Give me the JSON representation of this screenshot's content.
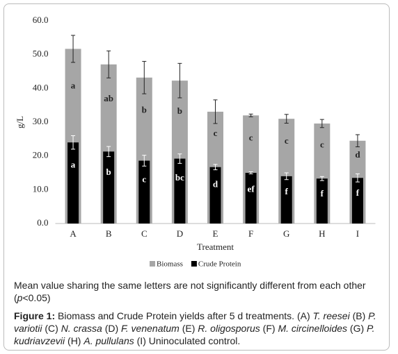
{
  "chart_data": {
    "type": "bar",
    "x_label": "Treatment",
    "y_label": "g/L",
    "categories": [
      "A",
      "B",
      "C",
      "D",
      "E",
      "F",
      "G",
      "H",
      "I"
    ],
    "series": [
      {
        "name": "Biomass",
        "color": "#a6a6a6",
        "values": [
          51.7,
          47.1,
          43.2,
          42.3,
          33.1,
          32.0,
          31.0,
          29.6,
          24.5
        ],
        "errors": [
          4.0,
          4.0,
          4.8,
          5.1,
          3.5,
          0.4,
          1.3,
          1.2,
          1.8
        ],
        "letters": [
          "a",
          "ab",
          "b",
          "b",
          "c",
          "c",
          "c",
          "c",
          "d"
        ]
      },
      {
        "name": "Crude Protein",
        "color": "#000000",
        "values": [
          24.0,
          21.3,
          18.6,
          19.2,
          16.7,
          15.0,
          14.0,
          13.3,
          13.5
        ],
        "errors": [
          2.0,
          1.5,
          1.6,
          1.4,
          0.8,
          0.3,
          1.0,
          0.6,
          1.2
        ],
        "letters": [
          "a",
          "b",
          "c",
          "bc",
          "d",
          "ef",
          "f",
          "f",
          "f"
        ]
      }
    ],
    "ylim": [
      0,
      60
    ],
    "yticks": [
      {
        "value": 0,
        "label": "0.0"
      },
      {
        "value": 10,
        "label": "10.0"
      },
      {
        "value": 20,
        "label": "20.0"
      },
      {
        "value": 30,
        "label": "30.0"
      },
      {
        "value": 40,
        "label": "40.0"
      },
      {
        "value": 50,
        "label": "50.0"
      },
      {
        "value": 60,
        "label": "60.0"
      }
    ],
    "grid": false,
    "legend": "bottom"
  },
  "note": [
    "Mean value sharing the same letters are not significantly different from each other (",
    "p",
    "<0.05)"
  ],
  "caption": [
    "Figure 1:",
    " Biomass and Crude Protein yields after 5 d treatments. (A) ",
    "T. reesei",
    " (B) ",
    "P. variotii",
    " (C) ",
    "N. crassa",
    " (D) ",
    "F. venenatum",
    " (E) ",
    "R. oligosporus",
    " (F) ",
    "M. circinelloides",
    " (G) ",
    "P. kudriavzevii",
    " (H) ",
    "A. pullulans",
    " (I) Uninoculated control."
  ]
}
